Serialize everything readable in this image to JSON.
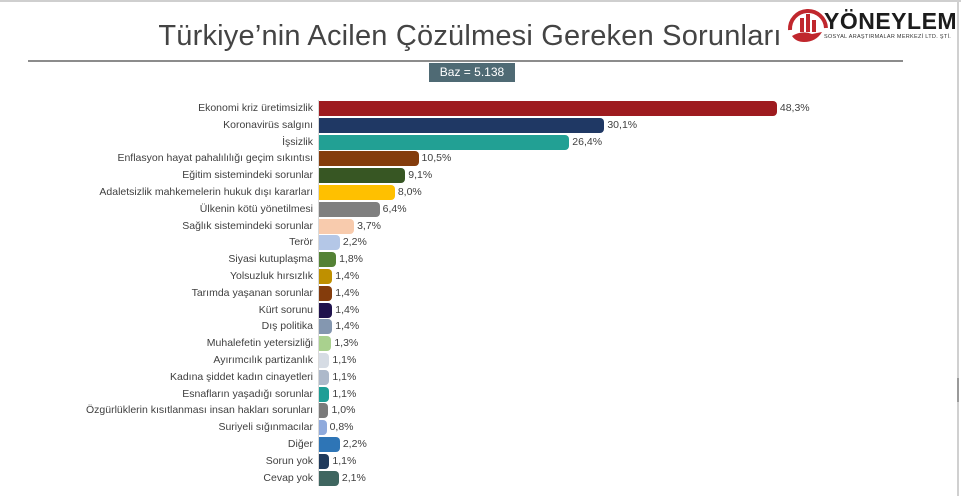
{
  "header": {
    "title": "Türkiye’nin Acilen Çözülmesi Gereken Sorunları",
    "base_badge": "Baz = 5.138",
    "logo_name": "YÖNEYLEM",
    "logo_subtitle": "SOSYAL ARAŞTIRMALAR MERKEZİ LTD. ŞTİ."
  },
  "colors": {
    "title_text": "#444444",
    "badge_bg": "#4f6a74",
    "logo_red": "#c0272d"
  },
  "chart_data": {
    "type": "bar",
    "orientation": "horizontal",
    "title": "Türkiye’nin Acilen Çözülmesi Gereken Sorunları",
    "subtitle": "Baz = 5.138",
    "xlabel": "",
    "ylabel": "",
    "unit": "%",
    "grid": false,
    "legend": "none",
    "xlim": [
      0,
      50
    ],
    "categories": [
      "Ekonomi kriz üretimsizlik",
      "Koronavirüs salgını",
      "İşsizlik",
      "Enflasyon hayat pahalılılığı geçim sıkıntısı",
      "Eğitim sistemindeki sorunlar",
      "Adaletsizlik mahkemelerin hukuk dışı kararları",
      "Ülkenin kötü yönetilmesi",
      "Sağlık sistemindeki sorunlar",
      "Terör",
      "Siyasi kutuplaşma",
      "Yolsuzluk hırsızlık",
      "Tarımda yaşanan sorunlar",
      "Kürt sorunu",
      "Dış politika",
      "Muhalefetin yetersizliği",
      "Ayırımcılık partizanlık",
      "Kadına şiddet kadın cinayetleri",
      "Esnafların yaşadığı sorunlar",
      "Özgürlüklerin kısıtlanması insan hakları sorunları",
      "Suriyeli sığınmacılar",
      "Diğer",
      "Sorun yok",
      "Cevap yok"
    ],
    "values": [
      48.3,
      30.1,
      26.4,
      10.5,
      9.1,
      8.0,
      6.4,
      3.7,
      2.2,
      1.8,
      1.4,
      1.4,
      1.4,
      1.4,
      1.3,
      1.1,
      1.1,
      1.1,
      1.0,
      0.8,
      2.2,
      1.1,
      2.1
    ],
    "value_labels": [
      "48,3%",
      "30,1%",
      "26,4%",
      "10,5%",
      "9,1%",
      "8,0%",
      "6,4%",
      "3,7%",
      "2,2%",
      "1,8%",
      "1,4%",
      "1,4%",
      "1,4%",
      "1,4%",
      "1,3%",
      "1,1%",
      "1,1%",
      "1,1%",
      "1,0%",
      "0,8%",
      "2,2%",
      "1,1%",
      "2,1%"
    ],
    "bar_colors": [
      "#9e1b1f",
      "#1f3864",
      "#22a094",
      "#843c0c",
      "#375623",
      "#ffc000",
      "#7f7f7f",
      "#f8cbad",
      "#b4c7e7",
      "#548235",
      "#bf9000",
      "#843c0c",
      "#20124d",
      "#8497b0",
      "#a9d18e",
      "#d6dce4",
      "#adb9ca",
      "#1e9e96",
      "#7a7a7a",
      "#8faadc",
      "#2e75b6",
      "#1f3a5c",
      "#3f6660"
    ]
  }
}
